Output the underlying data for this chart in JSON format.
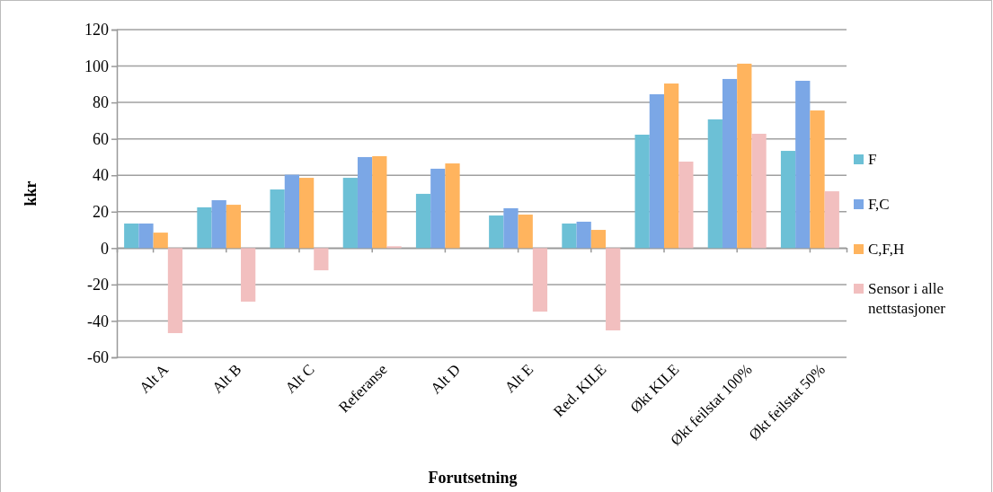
{
  "chart_data": {
    "type": "bar",
    "xlabel": "Forutsetning",
    "ylabel": "kkr",
    "categories": [
      "Alt A",
      "Alt B",
      "Alt C",
      "Referanse",
      "Alt D",
      "Alt E",
      "Red. KILE",
      "Økt KILE",
      "Økt feilstat 100%",
      "Økt feilstat 50%"
    ],
    "series": [
      {
        "name": "F",
        "color": "#6cc0d6",
        "values": [
          13.5,
          22.4,
          32.2,
          38.6,
          29.8,
          17.9,
          13.5,
          62.3,
          70.7,
          53.4
        ]
      },
      {
        "name": "F,C",
        "color": "#7ba7e6",
        "values": [
          13.5,
          26.3,
          40.3,
          50,
          43.6,
          21.9,
          14.5,
          84.5,
          92.9,
          91.9
        ]
      },
      {
        "name": "C,F,H",
        "color": "#ffb45e",
        "values": [
          8.5,
          23.8,
          38.6,
          50.5,
          46.5,
          18.4,
          10,
          90.4,
          101.3,
          75.6
        ]
      },
      {
        "name": "Sensor i alle nettstasjoner",
        "color": "#f2bfbf",
        "values": [
          -46.7,
          -29.4,
          -12.2,
          1,
          null,
          -34.9,
          -45.2,
          47.5,
          62.8,
          31.2
        ]
      }
    ],
    "ylim": [
      -60,
      120
    ],
    "yticks": [
      -60,
      -40,
      -20,
      0,
      20,
      40,
      60,
      80,
      100,
      120
    ],
    "grid": "y",
    "legend": "right"
  }
}
